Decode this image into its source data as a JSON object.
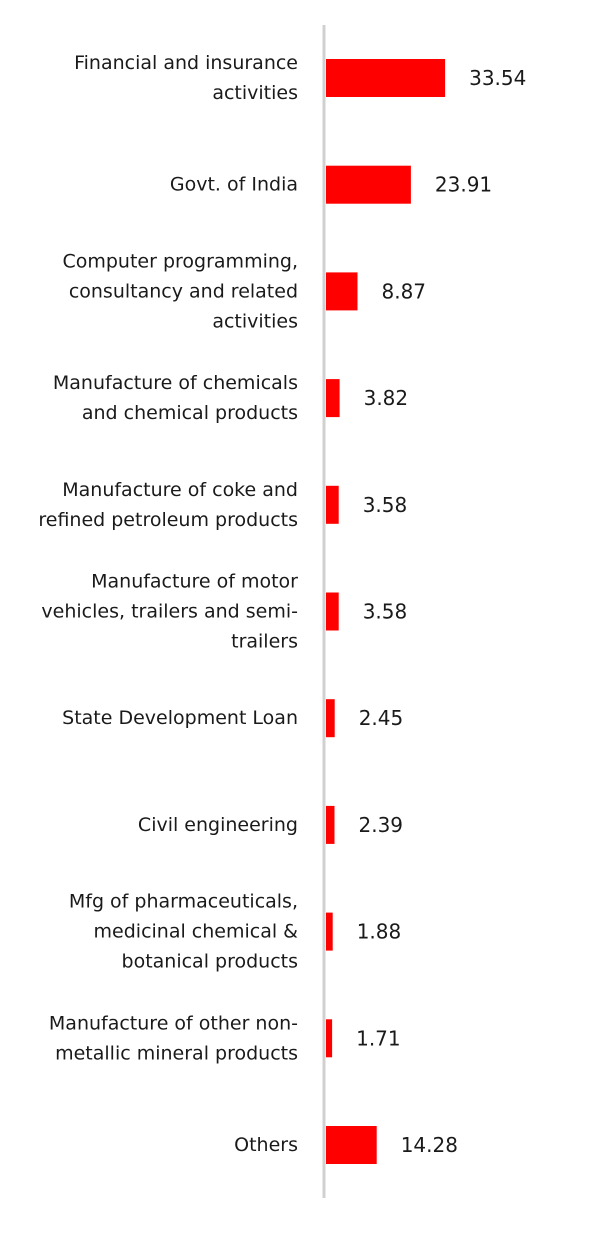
{
  "chart_data": {
    "type": "bar",
    "orientation": "horizontal",
    "categories": [
      [
        "Financial and insurance",
        "activities"
      ],
      [
        "Govt. of India"
      ],
      [
        "Computer programming,",
        "consultancy and related",
        "activities"
      ],
      [
        "Manufacture of chemicals",
        "and chemical products"
      ],
      [
        "Manufacture of coke and",
        "refined petroleum products"
      ],
      [
        "Manufacture of motor",
        "vehicles, trailers and semi-",
        "trailers"
      ],
      [
        "State Development Loan"
      ],
      [
        "Civil engineering"
      ],
      [
        "Mfg of pharmaceuticals,",
        "medicinal chemical &",
        "botanical products"
      ],
      [
        "Manufacture of other non-",
        "metallic mineral products"
      ],
      [
        "Others"
      ]
    ],
    "values": [
      33.54,
      23.91,
      8.87,
      3.82,
      3.58,
      3.58,
      2.45,
      2.39,
      1.88,
      1.71,
      14.28
    ],
    "value_labels": [
      "33.54",
      "23.91",
      "8.87",
      "3.82",
      "3.58",
      "3.58",
      "2.45",
      "2.39",
      "1.88",
      "1.71",
      "14.28"
    ],
    "title": "",
    "xlabel": "",
    "ylabel": "",
    "bar_color": "#ff0000",
    "axis_color": "#d0d0d0",
    "grid": false,
    "legend": "none"
  }
}
